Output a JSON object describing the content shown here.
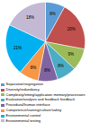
{
  "chart_data": {
    "type": "pie",
    "categories": [
      "Separation/segregation",
      "Diversity/redundancy",
      "Complexity/timing/application memory/processors",
      "Evaluation/analysis and feedback feedback",
      "Procedural/human interface",
      "Competence/training/culture/safety",
      "Environmental control",
      "Environmental testing"
    ],
    "values": [
      8,
      20,
      9,
      8,
      8,
      8,
      21,
      18
    ],
    "value_labels": [
      "8%",
      "20%",
      "9%",
      "8%",
      "8%",
      "8%",
      "21%",
      "18%"
    ],
    "colors": [
      "#5b9bd5",
      "#c0504d",
      "#9bbb59",
      "#4bacc6",
      "#8064a2",
      "#f79646",
      "#00b0f0",
      "#c3b9d4"
    ],
    "data_labels": true,
    "legend": "lower left"
  }
}
